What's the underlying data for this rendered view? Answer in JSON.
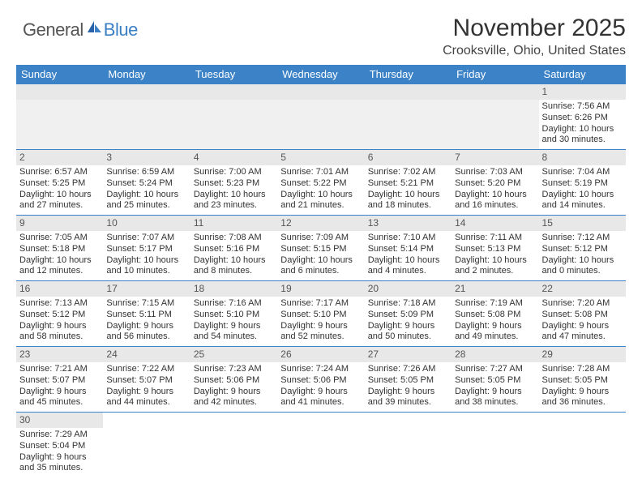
{
  "logo": {
    "text1": "General",
    "text2": "Blue",
    "color1": "#555555",
    "color2": "#3b7fc4"
  },
  "header": {
    "month_title": "November 2025",
    "location": "Crooksville, Ohio, United States"
  },
  "calendar": {
    "header_bg": "#3b82c7",
    "header_fg": "#ffffff",
    "daynum_bg": "#e8e8e8",
    "border_color": "#3b82c7",
    "day_headers": [
      "Sunday",
      "Monday",
      "Tuesday",
      "Wednesday",
      "Thursday",
      "Friday",
      "Saturday"
    ],
    "weeks": [
      [
        null,
        null,
        null,
        null,
        null,
        null,
        {
          "n": "1",
          "sr": "Sunrise: 7:56 AM",
          "ss": "Sunset: 6:26 PM",
          "d1": "Daylight: 10 hours",
          "d2": "and 30 minutes."
        }
      ],
      [
        {
          "n": "2",
          "sr": "Sunrise: 6:57 AM",
          "ss": "Sunset: 5:25 PM",
          "d1": "Daylight: 10 hours",
          "d2": "and 27 minutes."
        },
        {
          "n": "3",
          "sr": "Sunrise: 6:59 AM",
          "ss": "Sunset: 5:24 PM",
          "d1": "Daylight: 10 hours",
          "d2": "and 25 minutes."
        },
        {
          "n": "4",
          "sr": "Sunrise: 7:00 AM",
          "ss": "Sunset: 5:23 PM",
          "d1": "Daylight: 10 hours",
          "d2": "and 23 minutes."
        },
        {
          "n": "5",
          "sr": "Sunrise: 7:01 AM",
          "ss": "Sunset: 5:22 PM",
          "d1": "Daylight: 10 hours",
          "d2": "and 21 minutes."
        },
        {
          "n": "6",
          "sr": "Sunrise: 7:02 AM",
          "ss": "Sunset: 5:21 PM",
          "d1": "Daylight: 10 hours",
          "d2": "and 18 minutes."
        },
        {
          "n": "7",
          "sr": "Sunrise: 7:03 AM",
          "ss": "Sunset: 5:20 PM",
          "d1": "Daylight: 10 hours",
          "d2": "and 16 minutes."
        },
        {
          "n": "8",
          "sr": "Sunrise: 7:04 AM",
          "ss": "Sunset: 5:19 PM",
          "d1": "Daylight: 10 hours",
          "d2": "and 14 minutes."
        }
      ],
      [
        {
          "n": "9",
          "sr": "Sunrise: 7:05 AM",
          "ss": "Sunset: 5:18 PM",
          "d1": "Daylight: 10 hours",
          "d2": "and 12 minutes."
        },
        {
          "n": "10",
          "sr": "Sunrise: 7:07 AM",
          "ss": "Sunset: 5:17 PM",
          "d1": "Daylight: 10 hours",
          "d2": "and 10 minutes."
        },
        {
          "n": "11",
          "sr": "Sunrise: 7:08 AM",
          "ss": "Sunset: 5:16 PM",
          "d1": "Daylight: 10 hours",
          "d2": "and 8 minutes."
        },
        {
          "n": "12",
          "sr": "Sunrise: 7:09 AM",
          "ss": "Sunset: 5:15 PM",
          "d1": "Daylight: 10 hours",
          "d2": "and 6 minutes."
        },
        {
          "n": "13",
          "sr": "Sunrise: 7:10 AM",
          "ss": "Sunset: 5:14 PM",
          "d1": "Daylight: 10 hours",
          "d2": "and 4 minutes."
        },
        {
          "n": "14",
          "sr": "Sunrise: 7:11 AM",
          "ss": "Sunset: 5:13 PM",
          "d1": "Daylight: 10 hours",
          "d2": "and 2 minutes."
        },
        {
          "n": "15",
          "sr": "Sunrise: 7:12 AM",
          "ss": "Sunset: 5:12 PM",
          "d1": "Daylight: 10 hours",
          "d2": "and 0 minutes."
        }
      ],
      [
        {
          "n": "16",
          "sr": "Sunrise: 7:13 AM",
          "ss": "Sunset: 5:12 PM",
          "d1": "Daylight: 9 hours",
          "d2": "and 58 minutes."
        },
        {
          "n": "17",
          "sr": "Sunrise: 7:15 AM",
          "ss": "Sunset: 5:11 PM",
          "d1": "Daylight: 9 hours",
          "d2": "and 56 minutes."
        },
        {
          "n": "18",
          "sr": "Sunrise: 7:16 AM",
          "ss": "Sunset: 5:10 PM",
          "d1": "Daylight: 9 hours",
          "d2": "and 54 minutes."
        },
        {
          "n": "19",
          "sr": "Sunrise: 7:17 AM",
          "ss": "Sunset: 5:10 PM",
          "d1": "Daylight: 9 hours",
          "d2": "and 52 minutes."
        },
        {
          "n": "20",
          "sr": "Sunrise: 7:18 AM",
          "ss": "Sunset: 5:09 PM",
          "d1": "Daylight: 9 hours",
          "d2": "and 50 minutes."
        },
        {
          "n": "21",
          "sr": "Sunrise: 7:19 AM",
          "ss": "Sunset: 5:08 PM",
          "d1": "Daylight: 9 hours",
          "d2": "and 49 minutes."
        },
        {
          "n": "22",
          "sr": "Sunrise: 7:20 AM",
          "ss": "Sunset: 5:08 PM",
          "d1": "Daylight: 9 hours",
          "d2": "and 47 minutes."
        }
      ],
      [
        {
          "n": "23",
          "sr": "Sunrise: 7:21 AM",
          "ss": "Sunset: 5:07 PM",
          "d1": "Daylight: 9 hours",
          "d2": "and 45 minutes."
        },
        {
          "n": "24",
          "sr": "Sunrise: 7:22 AM",
          "ss": "Sunset: 5:07 PM",
          "d1": "Daylight: 9 hours",
          "d2": "and 44 minutes."
        },
        {
          "n": "25",
          "sr": "Sunrise: 7:23 AM",
          "ss": "Sunset: 5:06 PM",
          "d1": "Daylight: 9 hours",
          "d2": "and 42 minutes."
        },
        {
          "n": "26",
          "sr": "Sunrise: 7:24 AM",
          "ss": "Sunset: 5:06 PM",
          "d1": "Daylight: 9 hours",
          "d2": "and 41 minutes."
        },
        {
          "n": "27",
          "sr": "Sunrise: 7:26 AM",
          "ss": "Sunset: 5:05 PM",
          "d1": "Daylight: 9 hours",
          "d2": "and 39 minutes."
        },
        {
          "n": "28",
          "sr": "Sunrise: 7:27 AM",
          "ss": "Sunset: 5:05 PM",
          "d1": "Daylight: 9 hours",
          "d2": "and 38 minutes."
        },
        {
          "n": "29",
          "sr": "Sunrise: 7:28 AM",
          "ss": "Sunset: 5:05 PM",
          "d1": "Daylight: 9 hours",
          "d2": "and 36 minutes."
        }
      ],
      [
        {
          "n": "30",
          "sr": "Sunrise: 7:29 AM",
          "ss": "Sunset: 5:04 PM",
          "d1": "Daylight: 9 hours",
          "d2": "and 35 minutes."
        },
        null,
        null,
        null,
        null,
        null,
        null
      ]
    ]
  }
}
